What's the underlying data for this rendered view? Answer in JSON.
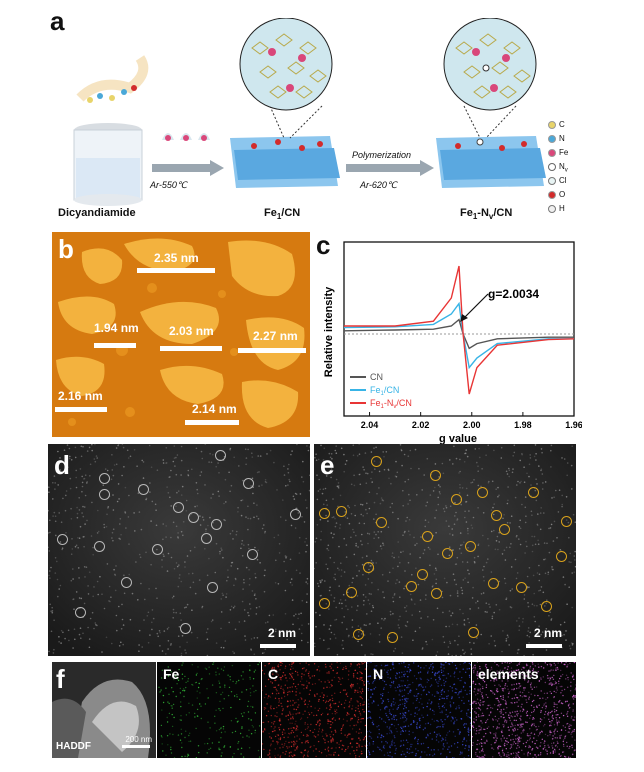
{
  "panels": {
    "a": "a",
    "b": "b",
    "c": "c",
    "d": "d",
    "e": "e",
    "f": "f"
  },
  "scheme": {
    "step1_label": "Dicyandiamide",
    "step1_condition": "Ar-550℃",
    "step2_label": "Fe1/CN",
    "step2_label_main": "Fe",
    "step2_label_sub": "1",
    "step2_label_tail": "/CN",
    "step2_condition_top": "Polymerization",
    "step2_condition_bottom": "Ar-620℃",
    "step3_label_main": "Fe",
    "step3_label_sub": "1",
    "step3_label_mid": "-N",
    "step3_label_sub2": "v",
    "step3_label_tail": "/CN",
    "legend": [
      {
        "sym": "C",
        "color": "#e8d46a"
      },
      {
        "sym": "N",
        "color": "#4aa8d8"
      },
      {
        "sym": "Fe",
        "color": "#d9477a"
      },
      {
        "sym": "N",
        "sub": "v",
        "color": "#ffffff"
      },
      {
        "sym": "Cl",
        "color": "#e8f4f4"
      },
      {
        "sym": "O",
        "color": "#d22b2b"
      },
      {
        "sym": "H",
        "color": "#f0f0f0"
      }
    ]
  },
  "afm": {
    "labels": [
      "2.35 nm",
      "1.94 nm",
      "2.03 nm",
      "2.27 nm",
      "2.16 nm",
      "2.14 nm"
    ]
  },
  "chart_data": {
    "type": "line",
    "xlabel": "g value",
    "ylabel": "Relative intensity",
    "x_ticks": [
      "2.04",
      "2.02",
      "2.00",
      "1.98",
      "1.96"
    ],
    "xlim": [
      2.05,
      1.96
    ],
    "annotation": "g=2.0034",
    "series": [
      {
        "name": "CN",
        "name_main": "CN",
        "color": "#555555",
        "x": [
          2.05,
          2.03,
          2.015,
          2.008,
          2.005,
          2.0034,
          2.001,
          1.998,
          1.99,
          1.97,
          1.96
        ],
        "y": [
          0.04,
          0.05,
          0.06,
          0.1,
          0.18,
          0.0,
          -0.18,
          -0.12,
          -0.06,
          -0.04,
          -0.04
        ]
      },
      {
        "name": "Fe1/CN",
        "name_main": "Fe",
        "name_sub": "1",
        "name_tail": "/CN",
        "color": "#38b4e6",
        "x": [
          2.05,
          2.03,
          2.015,
          2.008,
          2.005,
          2.0034,
          2.001,
          1.998,
          1.99,
          1.97,
          1.96
        ],
        "y": [
          0.08,
          0.09,
          0.12,
          0.25,
          0.38,
          0.0,
          -0.42,
          -0.3,
          -0.12,
          -0.06,
          -0.06
        ]
      },
      {
        "name": "Fe1-Nv/CN",
        "name_main": "Fe",
        "name_sub": "1",
        "name_mid": "-N",
        "name_sub2": "v",
        "name_tail": "/CN",
        "color": "#e83535",
        "x": [
          2.05,
          2.03,
          2.015,
          2.008,
          2.005,
          2.0034,
          2.001,
          1.998,
          1.99,
          1.97,
          1.96
        ],
        "y": [
          0.1,
          0.1,
          0.16,
          0.45,
          0.85,
          0.0,
          -0.75,
          -0.42,
          -0.14,
          -0.07,
          -0.06
        ]
      }
    ]
  },
  "stem": {
    "d_scale": "2 nm",
    "e_scale": "2 nm"
  },
  "maps": {
    "haddf": "HADDF",
    "haddf_scale": "200 nm",
    "fe": "Fe",
    "c": "C",
    "n": "N",
    "elements": "elements"
  }
}
